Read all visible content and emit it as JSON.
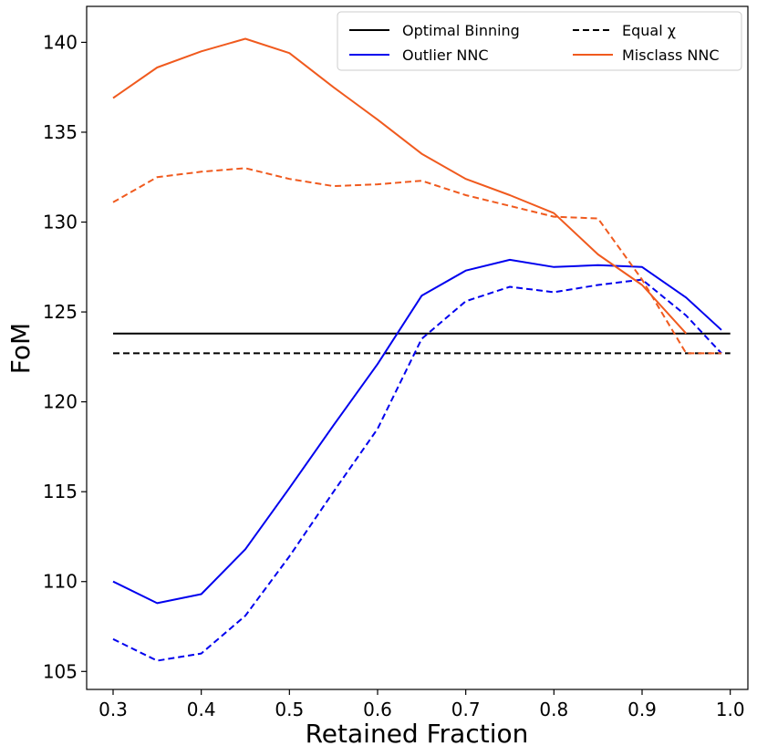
{
  "chart_data": {
    "type": "line",
    "title": "",
    "xlabel": "Retained Fraction",
    "ylabel": "FoM",
    "xlim": [
      0.27,
      1.02
    ],
    "ylim": [
      104.0,
      142.0
    ],
    "xticks": [
      0.3,
      0.4,
      0.5,
      0.6,
      0.7,
      0.8,
      0.9,
      1.0
    ],
    "xtick_labels": [
      "0.3",
      "0.4",
      "0.5",
      "0.6",
      "0.7",
      "0.8",
      "0.9",
      "1.0"
    ],
    "yticks": [
      105,
      110,
      115,
      120,
      125,
      130,
      135,
      140
    ],
    "ytick_labels": [
      "105",
      "110",
      "115",
      "120",
      "125",
      "130",
      "135",
      "140"
    ],
    "grid": false,
    "legend_position": "top-right",
    "legend": {
      "optimal_binning": "Optimal Binning",
      "equal_chi": "Equal χ",
      "outlier_nnc": "Outlier NNC",
      "misclass_nnc": "Misclass NNC"
    },
    "colors": {
      "black": "#000000",
      "blue": "#0000ee",
      "orange": "#f05a1e"
    },
    "series": [
      {
        "name": "Optimal Binning – baseline",
        "color": "#000000",
        "style": "solid",
        "x": [
          0.3,
          1.0
        ],
        "y": [
          123.8,
          123.8
        ]
      },
      {
        "name": "Equal χ – baseline",
        "color": "#000000",
        "style": "dashed",
        "x": [
          0.3,
          1.0
        ],
        "y": [
          122.7,
          122.7
        ]
      },
      {
        "name": "Outlier NNC – Optimal Binning",
        "color": "#0000ee",
        "style": "solid",
        "x": [
          0.3,
          0.35,
          0.4,
          0.45,
          0.5,
          0.55,
          0.6,
          0.65,
          0.7,
          0.75,
          0.8,
          0.85,
          0.9,
          0.95,
          0.99
        ],
        "y": [
          110.0,
          108.8,
          109.3,
          111.8,
          115.2,
          118.7,
          122.1,
          125.9,
          127.3,
          127.9,
          127.5,
          127.6,
          127.5,
          125.8,
          124.0
        ]
      },
      {
        "name": "Outlier NNC – Equal χ",
        "color": "#0000ee",
        "style": "dashed",
        "x": [
          0.3,
          0.35,
          0.4,
          0.45,
          0.5,
          0.55,
          0.6,
          0.65,
          0.7,
          0.75,
          0.8,
          0.85,
          0.9,
          0.95,
          0.99
        ],
        "y": [
          106.8,
          105.6,
          106.0,
          108.1,
          111.4,
          115.0,
          118.5,
          123.5,
          125.6,
          126.4,
          126.1,
          126.5,
          126.8,
          124.8,
          122.7
        ]
      },
      {
        "name": "Misclass NNC – Optimal Binning",
        "color": "#f05a1e",
        "style": "solid",
        "x": [
          0.3,
          0.35,
          0.4,
          0.45,
          0.5,
          0.55,
          0.6,
          0.65,
          0.7,
          0.75,
          0.8,
          0.85,
          0.9,
          0.95
        ],
        "y": [
          136.9,
          138.6,
          139.5,
          140.2,
          139.4,
          137.5,
          135.7,
          133.8,
          132.4,
          131.5,
          130.5,
          128.2,
          126.5,
          123.8
        ]
      },
      {
        "name": "Misclass NNC – Equal χ",
        "color": "#f05a1e",
        "style": "dashed",
        "x": [
          0.3,
          0.35,
          0.4,
          0.45,
          0.5,
          0.55,
          0.6,
          0.65,
          0.7,
          0.75,
          0.8,
          0.85,
          0.9,
          0.95,
          0.99
        ],
        "y": [
          131.1,
          132.5,
          132.8,
          133.0,
          132.4,
          132.0,
          132.1,
          132.3,
          131.5,
          130.9,
          130.3,
          130.2,
          126.8,
          122.7,
          122.7
        ]
      }
    ]
  }
}
